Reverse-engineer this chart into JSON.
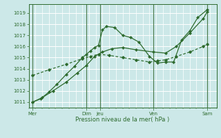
{
  "bg_color": "#cce8e8",
  "grid_color": "#ffffff",
  "line_color": "#2d6a2d",
  "xlabel": "Pression niveau de la mer( hPa )",
  "ylim": [
    1010.5,
    1019.8
  ],
  "yticks": [
    1011,
    1012,
    1013,
    1014,
    1015,
    1016,
    1017,
    1018,
    1019
  ],
  "xlim": [
    0,
    14.0
  ],
  "xtick_positions": [
    0.3,
    4.3,
    5.3,
    9.3,
    13.3
  ],
  "xtick_labels": [
    "Mer",
    "Dim",
    "Jeu",
    "Ven",
    "Sam"
  ],
  "num_x": 14.0,
  "line1_x": [
    0.3,
    0.9,
    1.5,
    2.1,
    2.8,
    3.4,
    4.0,
    4.3,
    4.6,
    4.9,
    5.2,
    5.5,
    5.8,
    6.4,
    7.0,
    7.6,
    8.2,
    9.0,
    9.6,
    10.2,
    10.8,
    11.4,
    12.0,
    12.6,
    13.3
  ],
  "line1_y": [
    1011.0,
    1011.3,
    1011.9,
    1012.6,
    1013.5,
    1014.2,
    1015.0,
    1015.3,
    1015.6,
    1015.9,
    1016.1,
    1017.5,
    1017.8,
    1017.7,
    1017.0,
    1016.8,
    1016.4,
    1015.1,
    1014.5,
    1014.6,
    1014.6,
    1016.6,
    1017.4,
    1018.6,
    1019.3
  ],
  "line2_x": [
    0.3,
    1.5,
    2.8,
    4.0,
    4.6,
    5.2,
    6.0,
    7.0,
    8.0,
    9.0,
    9.6,
    10.2,
    11.0,
    12.0,
    13.0,
    13.3
  ],
  "line2_y": [
    1013.4,
    1013.9,
    1014.4,
    1014.9,
    1015.1,
    1015.3,
    1015.2,
    1015.0,
    1014.8,
    1014.6,
    1014.7,
    1014.8,
    1015.1,
    1015.5,
    1016.0,
    1016.2
  ],
  "line3_x": [
    0.3,
    1.0,
    1.8,
    2.8,
    3.6,
    4.3,
    4.9,
    5.5,
    6.2,
    7.0,
    8.0,
    9.3,
    10.2,
    11.0,
    12.0,
    13.0,
    13.3
  ],
  "line3_y": [
    1011.0,
    1011.4,
    1012.0,
    1012.8,
    1013.6,
    1014.3,
    1015.1,
    1015.5,
    1015.8,
    1015.9,
    1015.7,
    1015.5,
    1015.4,
    1016.0,
    1017.2,
    1018.5,
    1019.1
  ],
  "vline_x": [
    0.3,
    4.3,
    5.3,
    9.3,
    13.3
  ]
}
